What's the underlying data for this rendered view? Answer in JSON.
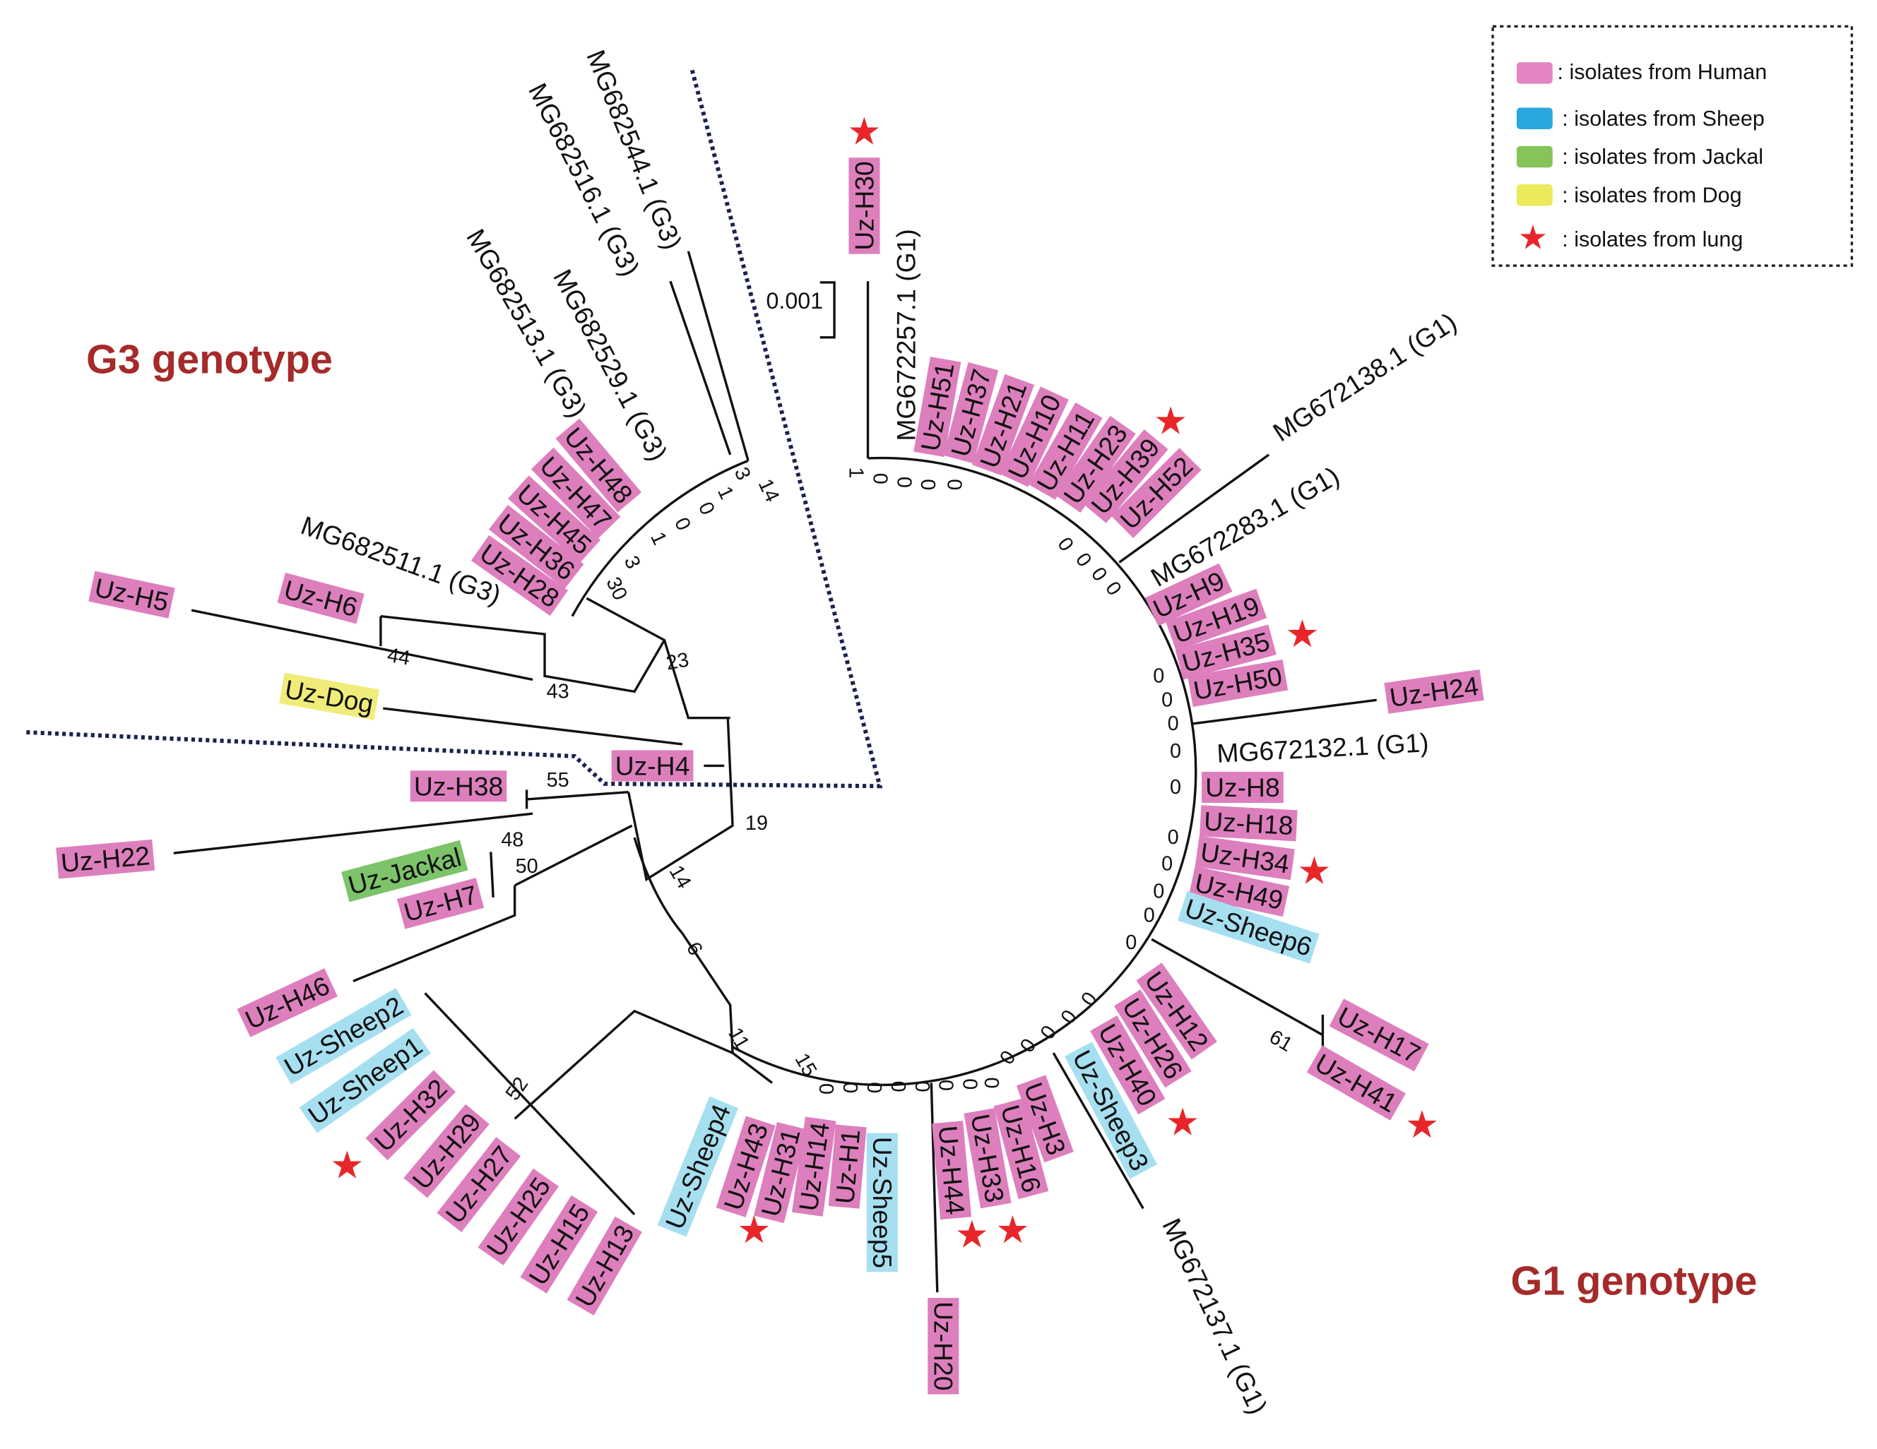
{
  "legend": {
    "items": [
      {
        "label": ": isolates from Human",
        "color": "#e385c0",
        "icon": "swatch"
      },
      {
        "label": ": isolates from Sheep",
        "color": "#29a8e0",
        "icon": "swatch"
      },
      {
        "label": ": isolates from Jackal",
        "color": "#86c45a",
        "icon": "swatch"
      },
      {
        "label": ": isolates from Dog",
        "color": "#eaea5a",
        "icon": "swatch"
      },
      {
        "label": ": isolates from lung",
        "color": "#e8262a",
        "icon": "star-icon"
      }
    ]
  },
  "colors": {
    "human": "#dd7fbd",
    "sheep": "#a6dff0",
    "jackal": "#7cc36a",
    "dog": "#f0ec7a",
    "lung_star": "#e8262a",
    "genotype_heading": "#a52a2a",
    "clade_border": "#1b2250"
  },
  "headings": {
    "g3": "G3 genotype",
    "g1": "G1 genotype"
  },
  "scale_bar": "0.001",
  "leaves": [
    {
      "label": "Uz-H30",
      "source": "human",
      "lung": true
    },
    {
      "label": "MG672257.1 (G1)",
      "source": "reference"
    },
    {
      "label": "Uz-H51",
      "source": "human"
    },
    {
      "label": "Uz-H37",
      "source": "human"
    },
    {
      "label": "Uz-H21",
      "source": "human"
    },
    {
      "label": "Uz-H10",
      "source": "human"
    },
    {
      "label": "Uz-H11",
      "source": "human"
    },
    {
      "label": "Uz-H23",
      "source": "human"
    },
    {
      "label": "Uz-H39",
      "source": "human",
      "lung": true
    },
    {
      "label": "Uz-H52",
      "source": "human"
    },
    {
      "label": "MG672138.1 (G1)",
      "source": "reference"
    },
    {
      "label": "MG672283.1 (G1)",
      "source": "reference"
    },
    {
      "label": "Uz-H9",
      "source": "human"
    },
    {
      "label": "Uz-H19",
      "source": "human"
    },
    {
      "label": "Uz-H35",
      "source": "human",
      "lung": true
    },
    {
      "label": "Uz-H50",
      "source": "human"
    },
    {
      "label": "Uz-H24",
      "source": "human"
    },
    {
      "label": "MG672132.1 (G1)",
      "source": "reference"
    },
    {
      "label": "Uz-H8",
      "source": "human"
    },
    {
      "label": "Uz-H18",
      "source": "human"
    },
    {
      "label": "Uz-H34",
      "source": "human",
      "lung": true
    },
    {
      "label": "Uz-H49",
      "source": "human"
    },
    {
      "label": "Uz-Sheep6",
      "source": "sheep"
    },
    {
      "label": "Uz-H17",
      "source": "human"
    },
    {
      "label": "Uz-H41",
      "source": "human",
      "lung": true
    },
    {
      "label": "Uz-H12",
      "source": "human"
    },
    {
      "label": "Uz-H26",
      "source": "human"
    },
    {
      "label": "Uz-H40",
      "source": "human",
      "lung": true
    },
    {
      "label": "Uz-Sheep3",
      "source": "sheep"
    },
    {
      "label": "MG672137.1 (G1)",
      "source": "reference"
    },
    {
      "label": "Uz-H3",
      "source": "human"
    },
    {
      "label": "Uz-H16",
      "source": "human",
      "lung": true
    },
    {
      "label": "Uz-H33",
      "source": "human"
    },
    {
      "label": "Uz-H44",
      "source": "human",
      "lung": true
    },
    {
      "label": "Uz-H20",
      "source": "human"
    },
    {
      "label": "Uz-Sheep5",
      "source": "sheep"
    },
    {
      "label": "Uz-H1",
      "source": "human"
    },
    {
      "label": "Uz-H14",
      "source": "human"
    },
    {
      "label": "Uz-H31",
      "source": "human"
    },
    {
      "label": "Uz-H43",
      "source": "human",
      "lung": true
    },
    {
      "label": "Uz-Sheep4",
      "source": "sheep"
    },
    {
      "label": "Uz-H13",
      "source": "human"
    },
    {
      "label": "Uz-H15",
      "source": "human"
    },
    {
      "label": "Uz-H25",
      "source": "human"
    },
    {
      "label": "Uz-H27",
      "source": "human"
    },
    {
      "label": "Uz-H29",
      "source": "human"
    },
    {
      "label": "Uz-H32",
      "source": "human",
      "lung": true
    },
    {
      "label": "Uz-Sheep1",
      "source": "sheep"
    },
    {
      "label": "Uz-Sheep2",
      "source": "sheep"
    },
    {
      "label": "Uz-H46",
      "source": "human"
    },
    {
      "label": "Uz-H7",
      "source": "human"
    },
    {
      "label": "Uz-Jackal",
      "source": "jackal"
    },
    {
      "label": "Uz-H22",
      "source": "human"
    },
    {
      "label": "Uz-H38",
      "source": "human"
    },
    {
      "label": "Uz-H4",
      "source": "human"
    },
    {
      "label": "Uz-Dog",
      "source": "dog"
    },
    {
      "label": "Uz-H5",
      "source": "human"
    },
    {
      "label": "Uz-H6",
      "source": "human"
    },
    {
      "label": "MG682511.1 (G3)",
      "source": "reference"
    },
    {
      "label": "Uz-H28",
      "source": "human"
    },
    {
      "label": "Uz-H36",
      "source": "human"
    },
    {
      "label": "Uz-H45",
      "source": "human"
    },
    {
      "label": "Uz-H47",
      "source": "human"
    },
    {
      "label": "Uz-H48",
      "source": "human"
    },
    {
      "label": "MG682513.1 (G3)",
      "source": "reference"
    },
    {
      "label": "MG682529.1 (G3)",
      "source": "reference"
    },
    {
      "label": "MG682516.1 (G3)",
      "source": "reference"
    },
    {
      "label": "MG682544.1 (G3)",
      "source": "reference"
    }
  ],
  "bootstrap_values": [
    "14",
    "3",
    "1",
    "0",
    "0",
    "1",
    "3",
    "30",
    "23",
    "43",
    "44",
    "19",
    "55",
    "48",
    "50",
    "14",
    "6",
    "11",
    "15",
    "0",
    "0",
    "52",
    "61",
    "1",
    "0",
    "0",
    "0",
    "0",
    "0",
    "0",
    "0",
    "0",
    "0",
    "0",
    "0",
    "0",
    "0",
    "0",
    "0",
    "0",
    "0",
    "0",
    "0",
    "0",
    "0",
    "0",
    "0",
    "0",
    "0",
    "0",
    "0",
    "0",
    "0"
  ]
}
